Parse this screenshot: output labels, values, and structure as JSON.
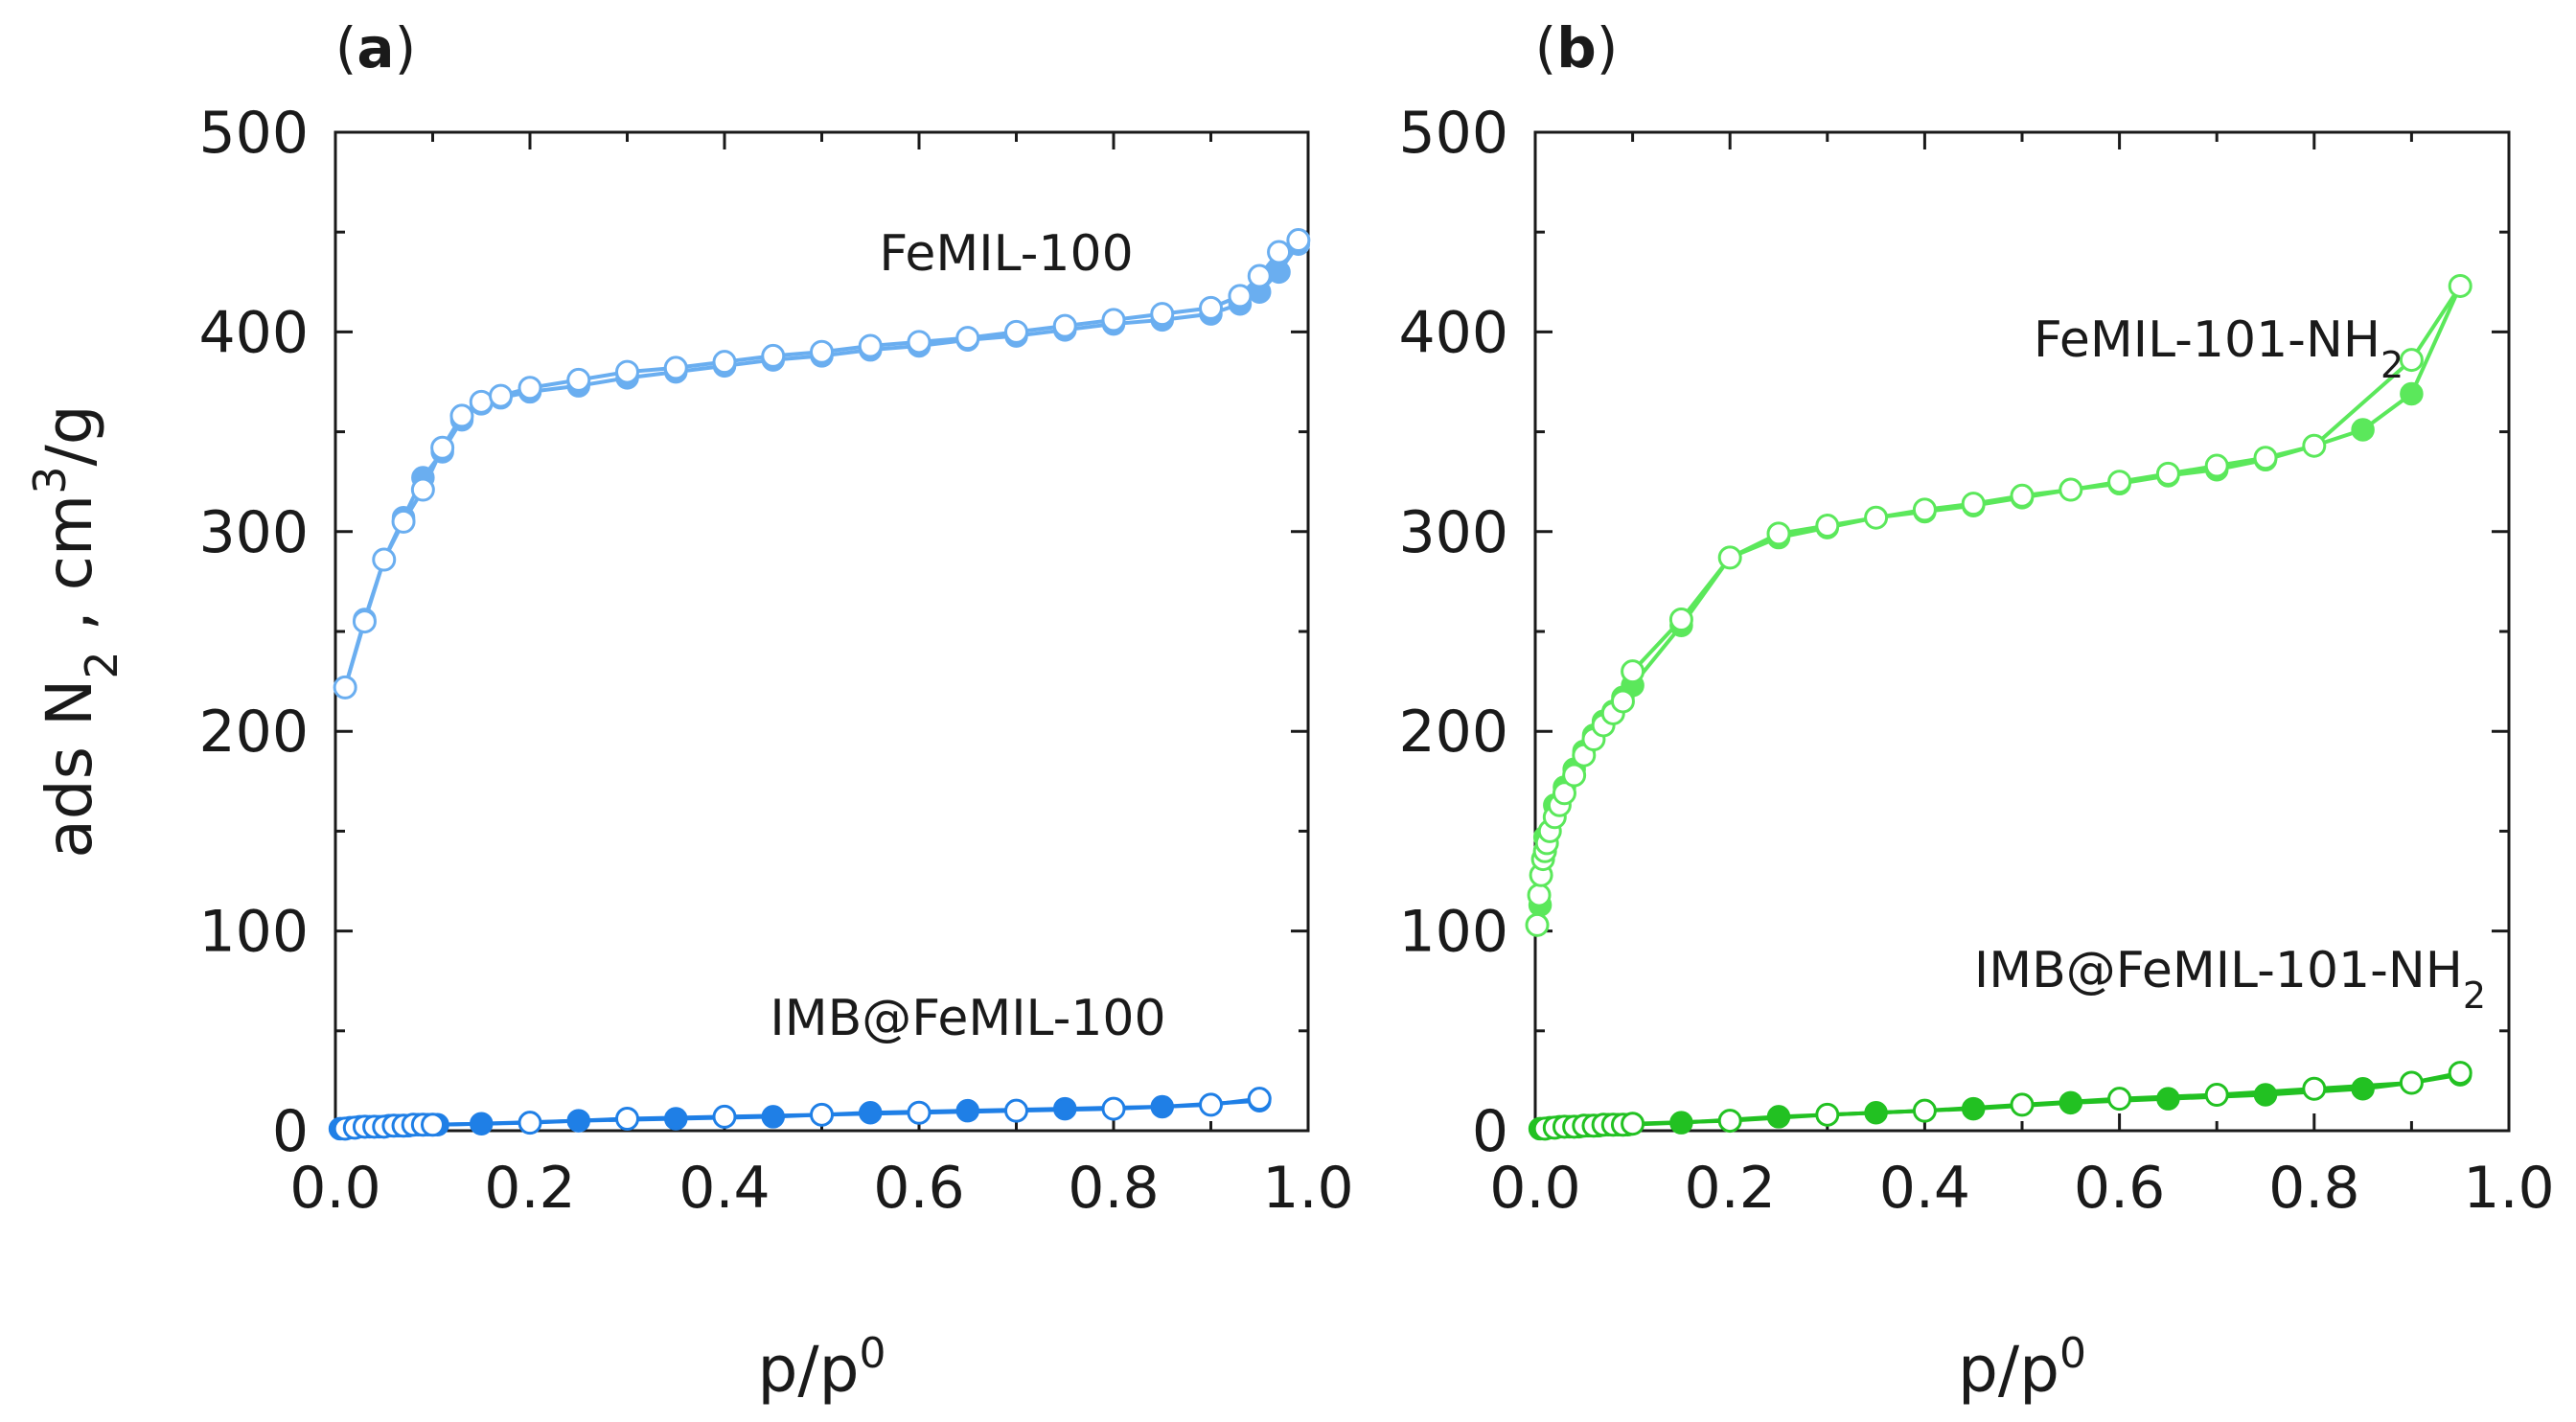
{
  "chart_data": [
    {
      "type": "line",
      "panel_label": "(a)",
      "xlabel": "p/p0",
      "ylabel": "ads N2 , cm3/g",
      "xlim": [
        0.0,
        1.0
      ],
      "ylim": [
        0,
        500
      ],
      "x_ticks": [
        "0.0",
        "0.2",
        "0.4",
        "0.6",
        "0.8",
        "1.0"
      ],
      "y_ticks": [
        "0",
        "100",
        "200",
        "300",
        "400",
        "500"
      ],
      "series": [
        {
          "name": "FeMIL-100",
          "label": "FeMIL-100",
          "color": "#6aaef0",
          "adsorption": {
            "x": [
              0.01,
              0.03,
              0.05,
              0.07,
              0.09,
              0.11,
              0.13,
              0.15,
              0.17,
              0.2,
              0.25,
              0.3,
              0.35,
              0.4,
              0.45,
              0.5,
              0.55,
              0.6,
              0.65,
              0.7,
              0.75,
              0.8,
              0.85,
              0.9,
              0.93,
              0.95,
              0.97,
              0.99
            ],
            "y": [
              222,
              256,
              286,
              307,
              327,
              340,
              356,
              364,
              367,
              370,
              373,
              377,
              380,
              383,
              386,
              388,
              391,
              393,
              396,
              398,
              401,
              404,
              406,
              409,
              414,
              420,
              430,
              444
            ]
          },
          "desorption": {
            "x": [
              0.01,
              0.03,
              0.05,
              0.07,
              0.09,
              0.11,
              0.13,
              0.15,
              0.17,
              0.2,
              0.25,
              0.3,
              0.35,
              0.4,
              0.45,
              0.5,
              0.55,
              0.6,
              0.65,
              0.7,
              0.75,
              0.8,
              0.85,
              0.9,
              0.93,
              0.95,
              0.97,
              0.99
            ],
            "y": [
              222,
              255,
              286,
              305,
              321,
              342,
              358,
              365,
              368,
              372,
              376,
              380,
              382,
              385,
              388,
              390,
              393,
              395,
              397,
              400,
              403,
              406,
              409,
              412,
              418,
              428,
              440,
              446
            ]
          }
        },
        {
          "name": "IMB@FeMIL-100",
          "label": "IMB@FeMIL-100",
          "color": "#1f7fe6",
          "adsorption": {
            "x": [
              0.005,
              0.015,
              0.025,
              0.035,
              0.045,
              0.055,
              0.065,
              0.075,
              0.085,
              0.095,
              0.105,
              0.15,
              0.25,
              0.35,
              0.45,
              0.55,
              0.65,
              0.75,
              0.85,
              0.95
            ],
            "y": [
              1,
              1.5,
              2,
              2,
              2,
              2.5,
              2.5,
              2.5,
              3,
              3,
              3,
              3.5,
              5,
              6,
              7,
              9,
              10,
              11,
              12,
              15
            ]
          },
          "desorption": {
            "x": [
              0.01,
              0.02,
              0.03,
              0.04,
              0.05,
              0.06,
              0.07,
              0.08,
              0.09,
              0.1,
              0.2,
              0.3,
              0.4,
              0.5,
              0.6,
              0.7,
              0.8,
              0.9,
              0.95
            ],
            "y": [
              1,
              1.5,
              2,
              2,
              2,
              2.5,
              2.5,
              3,
              3,
              3,
              4,
              6,
              7,
              8,
              9,
              10,
              11,
              13,
              16
            ]
          }
        }
      ]
    },
    {
      "type": "line",
      "panel_label": "(b)",
      "xlabel": "p/p0",
      "ylabel": "",
      "xlim": [
        0.0,
        1.0
      ],
      "ylim": [
        0,
        500
      ],
      "x_ticks": [
        "0.0",
        "0.2",
        "0.4",
        "0.6",
        "0.8",
        "1.0"
      ],
      "y_ticks": [
        "0",
        "100",
        "200",
        "300",
        "400",
        "500"
      ],
      "series": [
        {
          "name": "FeMIL-101-NH2",
          "label": "FeMIL-101-NH2",
          "color": "#5be85b",
          "adsorption": {
            "x": [
              0.005,
              0.01,
              0.02,
              0.03,
              0.04,
              0.05,
              0.06,
              0.07,
              0.08,
              0.09,
              0.1,
              0.15,
              0.2,
              0.25,
              0.3,
              0.35,
              0.4,
              0.45,
              0.5,
              0.55,
              0.6,
              0.65,
              0.7,
              0.75,
              0.8,
              0.85,
              0.9,
              0.95
            ],
            "y": [
              113,
              147,
              163,
              172,
              181,
              190,
              198,
              205,
              210,
              217,
              223,
              253,
              287,
              297,
              302,
              307,
              310,
              313,
              317,
              321,
              324,
              328,
              331,
              336,
              343,
              351,
              369,
              423
            ]
          },
          "desorption": {
            "x": [
              0.002,
              0.004,
              0.006,
              0.008,
              0.01,
              0.012,
              0.015,
              0.02,
              0.025,
              0.03,
              0.04,
              0.05,
              0.06,
              0.07,
              0.08,
              0.09,
              0.1,
              0.15,
              0.2,
              0.25,
              0.3,
              0.35,
              0.4,
              0.45,
              0.5,
              0.55,
              0.6,
              0.65,
              0.7,
              0.75,
              0.8,
              0.9,
              0.95
            ],
            "y": [
              103,
              118,
              128,
              136,
              140,
              144,
              150,
              157,
              163,
              169,
              178,
              188,
              196,
              203,
              209,
              215,
              230,
              256,
              287,
              299,
              303,
              307,
              311,
              314,
              318,
              321,
              325,
              329,
              333,
              337,
              343,
              386,
              423
            ]
          }
        },
        {
          "name": "IMB@FeMIL-101-NH2",
          "label": "IMB@FeMIL-101-NH2",
          "color": "#22c122",
          "adsorption": {
            "x": [
              0.005,
              0.015,
              0.025,
              0.035,
              0.045,
              0.055,
              0.065,
              0.075,
              0.085,
              0.095,
              0.15,
              0.25,
              0.35,
              0.45,
              0.55,
              0.65,
              0.75,
              0.85,
              0.9,
              0.95
            ],
            "y": [
              1,
              1.5,
              2,
              2,
              2,
              2.5,
              2.5,
              3,
              3,
              3,
              4,
              7,
              9,
              11,
              14,
              16,
              18,
              21,
              24,
              28
            ]
          },
          "desorption": {
            "x": [
              0.01,
              0.02,
              0.03,
              0.04,
              0.05,
              0.06,
              0.07,
              0.08,
              0.09,
              0.1,
              0.2,
              0.3,
              0.4,
              0.5,
              0.6,
              0.7,
              0.8,
              0.9,
              0.95
            ],
            "y": [
              1,
              1.5,
              2,
              2,
              2.5,
              2.5,
              3,
              3,
              3,
              3.5,
              5,
              8,
              10,
              13,
              16,
              18,
              21,
              24,
              29
            ]
          }
        }
      ]
    }
  ]
}
